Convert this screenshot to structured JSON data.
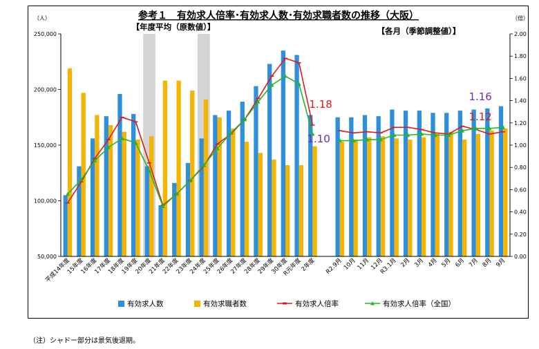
{
  "note": "（注）シャドー部分は景気後退期。",
  "chart_data": {
    "type": "bar+line",
    "title": "参考１　有効求人倍率･有効求人数･有効求職者数の推移（大阪）",
    "section_labels": [
      "【年度平均（原数値）】",
      "【各月（季節調整値）】"
    ],
    "y_left": {
      "unit": "（人）",
      "min": 50000,
      "max": 250000,
      "step": 50000,
      "ticks": [
        "50,000",
        "100,000",
        "150,000",
        "200,000",
        "250,000"
      ]
    },
    "y_right": {
      "unit": "（倍）",
      "min": 0,
      "max": 2,
      "step": 0.2,
      "ticks": [
        "0.00",
        "0.20",
        "0.40",
        "0.60",
        "0.80",
        "1.00",
        "1.20",
        "1.40",
        "1.60",
        "1.80",
        "2.00"
      ]
    },
    "categories": [
      "平成14年度",
      "15年度",
      "16年度",
      "17年度",
      "18年度",
      "19年度",
      "20年度",
      "21年度",
      "22年度",
      "23年度",
      "24年度",
      "25年度",
      "26年度",
      "27年度",
      "28年度",
      "29年度",
      "30年度",
      "R元年度",
      "2年度",
      "",
      "R2.9月",
      "10月",
      "11月",
      "12月",
      "R3.1月",
      "2月",
      "3月",
      "4月",
      "5月",
      "6月",
      "7月",
      "8月",
      "9月"
    ],
    "recession_shading_indices": [
      6,
      10
    ],
    "series": [
      {
        "name": "有効求人数",
        "kind": "bar",
        "color": "#2e8fdc",
        "values": [
          105000,
          131000,
          156000,
          176000,
          196000,
          178000,
          131000,
          96000,
          116000,
          134000,
          156000,
          177000,
          181000,
          189000,
          203000,
          223000,
          235000,
          231000,
          177000,
          null,
          175000,
          175000,
          177000,
          176000,
          182000,
          181000,
          181000,
          179000,
          179000,
          181000,
          182000,
          183000,
          185000
        ]
      },
      {
        "name": "有効求職者数",
        "kind": "bar",
        "color": "#f5b400",
        "values": [
          219000,
          197000,
          177000,
          168000,
          162000,
          155000,
          158000,
          208000,
          208000,
          199000,
          191000,
          175000,
          165000,
          153000,
          143000,
          137000,
          132000,
          132000,
          149000,
          null,
          153000,
          155000,
          157000,
          158000,
          156000,
          155000,
          157000,
          160000,
          162000,
          155000,
          160000,
          163000,
          165000
        ]
      },
      {
        "name": "有効求人倍率",
        "kind": "line",
        "color": "#e01818",
        "values": [
          0.48,
          0.67,
          0.88,
          1.05,
          1.25,
          1.21,
          0.84,
          0.46,
          0.56,
          0.68,
          0.81,
          1.01,
          1.1,
          1.23,
          1.42,
          1.62,
          1.78,
          1.74,
          1.18,
          null,
          1.13,
          1.11,
          1.12,
          1.11,
          1.16,
          1.16,
          1.14,
          1.11,
          1.1,
          1.17,
          1.14,
          1.1,
          1.12
        ]
      },
      {
        "name": "有効求人倍率（全国）",
        "kind": "line",
        "color": "#22b822",
        "values": [
          0.56,
          0.69,
          0.86,
          0.98,
          1.06,
          1.02,
          0.77,
          0.45,
          0.56,
          0.68,
          0.82,
          0.97,
          1.11,
          1.23,
          1.39,
          1.54,
          1.62,
          1.55,
          1.1,
          null,
          1.04,
          1.04,
          1.05,
          1.05,
          1.09,
          1.09,
          1.1,
          1.09,
          1.09,
          1.13,
          1.15,
          1.15,
          1.16
        ]
      }
    ],
    "annotations": [
      {
        "text": "1.18",
        "color": "#e01818"
      },
      {
        "text": "1.10",
        "color": "#7030a0"
      },
      {
        "text": "1.16",
        "color": "#7030a0"
      },
      {
        "text": "1.12",
        "color": "#e01818"
      }
    ],
    "legend": {
      "placement": "bottom"
    }
  }
}
